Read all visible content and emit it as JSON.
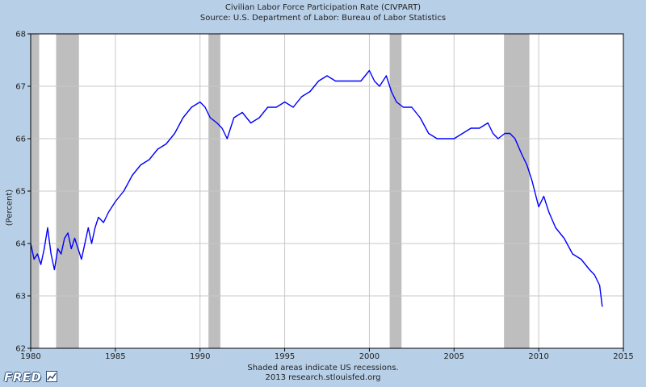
{
  "header": {
    "title": "Civilian Labor Force Participation Rate (CIVPART)",
    "source": "Source: U.S. Department of Labor: Bureau of Labor Statistics"
  },
  "footer": {
    "note": "Shaded areas indicate US recessions.",
    "credit": "2013 research.stlouisfed.org",
    "logo_text": "FRED",
    "logo_icon": "line-chart-icon"
  },
  "colors": {
    "background": "#b7d0e8",
    "plot_background": "#ffffff",
    "series": "#0000ff",
    "recession": "#bebebe",
    "grid": "#c8c8c8"
  },
  "chart_data": {
    "type": "line",
    "title": "Civilian Labor Force Participation Rate (CIVPART)",
    "subtitle": "Source: U.S. Department of Labor: Bureau of Labor Statistics",
    "ylabel": "(Percent)",
    "xlabel": "",
    "xlim": [
      1980,
      2015
    ],
    "ylim": [
      62,
      68
    ],
    "xticks": [
      "1980",
      "1985",
      "1990",
      "1995",
      "2000",
      "2005",
      "2010",
      "2015"
    ],
    "yticks": [
      "62",
      "63",
      "64",
      "65",
      "66",
      "67",
      "68"
    ],
    "grid": true,
    "recessions": [
      [
        1980.0,
        1980.5
      ],
      [
        1981.5,
        1982.85
      ],
      [
        1990.5,
        1991.2
      ],
      [
        2001.2,
        2001.9
      ],
      [
        2007.95,
        2009.45
      ]
    ],
    "series": [
      {
        "name": "",
        "x": [
          1980.0,
          1980.2,
          1980.4,
          1980.6,
          1980.8,
          1981.0,
          1981.2,
          1981.4,
          1981.6,
          1981.8,
          1982.0,
          1982.2,
          1982.4,
          1982.6,
          1982.8,
          1983.0,
          1983.2,
          1983.4,
          1983.6,
          1983.8,
          1984.0,
          1984.3,
          1984.6,
          1985.0,
          1985.5,
          1986.0,
          1986.5,
          1987.0,
          1987.5,
          1988.0,
          1988.5,
          1989.0,
          1989.5,
          1990.0,
          1990.3,
          1990.6,
          1991.0,
          1991.3,
          1991.6,
          1992.0,
          1992.5,
          1993.0,
          1993.5,
          1994.0,
          1994.5,
          1995.0,
          1995.5,
          1996.0,
          1996.5,
          1997.0,
          1997.5,
          1998.0,
          1998.5,
          1999.0,
          1999.5,
          2000.0,
          2000.3,
          2000.6,
          2001.0,
          2001.3,
          2001.6,
          2002.0,
          2002.5,
          2003.0,
          2003.5,
          2004.0,
          2004.5,
          2005.0,
          2005.5,
          2006.0,
          2006.5,
          2007.0,
          2007.3,
          2007.6,
          2008.0,
          2008.3,
          2008.6,
          2009.0,
          2009.3,
          2009.6,
          2010.0,
          2010.3,
          2010.6,
          2011.0,
          2011.5,
          2012.0,
          2012.5,
          2013.0,
          2013.3,
          2013.6,
          2013.75
        ],
        "y": [
          64.0,
          63.7,
          63.8,
          63.6,
          63.9,
          64.3,
          63.8,
          63.5,
          63.9,
          63.8,
          64.1,
          64.2,
          63.9,
          64.1,
          63.9,
          63.7,
          64.0,
          64.3,
          64.0,
          64.3,
          64.5,
          64.4,
          64.6,
          64.8,
          65.0,
          65.3,
          65.5,
          65.6,
          65.8,
          65.9,
          66.1,
          66.4,
          66.6,
          66.7,
          66.6,
          66.4,
          66.3,
          66.2,
          66.0,
          66.4,
          66.5,
          66.3,
          66.4,
          66.6,
          66.6,
          66.7,
          66.6,
          66.8,
          66.9,
          67.1,
          67.2,
          67.1,
          67.1,
          67.1,
          67.1,
          67.3,
          67.1,
          67.0,
          67.2,
          66.9,
          66.7,
          66.6,
          66.6,
          66.4,
          66.1,
          66.0,
          66.0,
          66.0,
          66.1,
          66.2,
          66.2,
          66.3,
          66.1,
          66.0,
          66.1,
          66.1,
          66.0,
          65.7,
          65.5,
          65.2,
          64.7,
          64.9,
          64.6,
          64.3,
          64.1,
          63.8,
          63.7,
          63.5,
          63.4,
          63.2,
          62.8
        ]
      }
    ]
  }
}
